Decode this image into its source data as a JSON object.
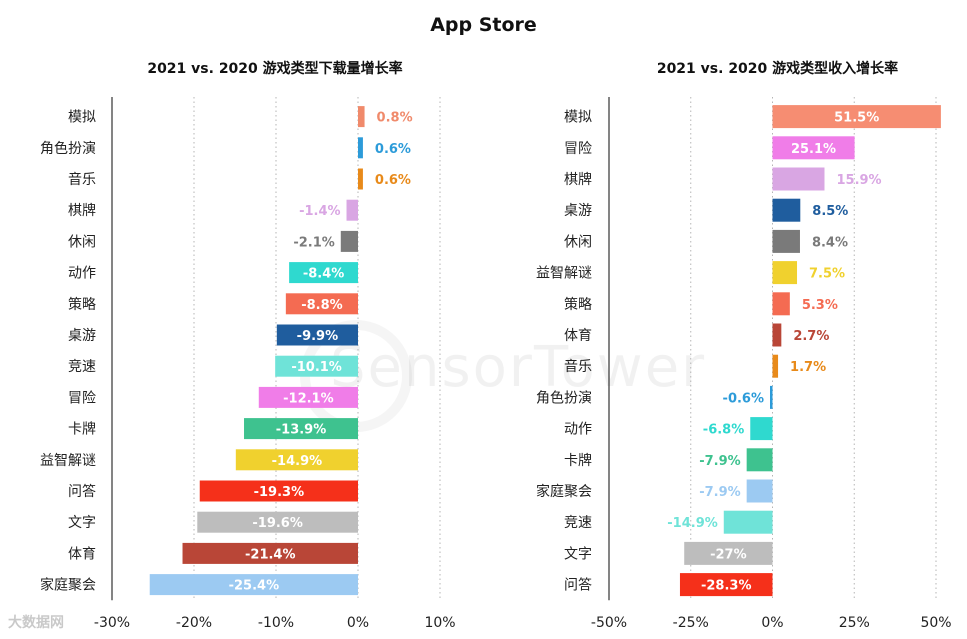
{
  "title": "App Store",
  "footer": "大数据网",
  "watermark": "SensorTower",
  "chart_data": [
    {
      "type": "bar",
      "orientation": "horizontal",
      "title": "2021 vs. 2020 游戏类型下载量增长率",
      "xlim": [
        -30,
        10
      ],
      "xticks": [
        -30,
        -20,
        -10,
        0,
        10
      ],
      "tick_labels": [
        "-30%",
        "-20%",
        "-10%",
        "0%",
        "10%"
      ],
      "grid": true,
      "categories": [
        "模拟",
        "角色扮演",
        "音乐",
        "棋牌",
        "休闲",
        "动作",
        "策略",
        "桌游",
        "竞速",
        "冒险",
        "卡牌",
        "益智解谜",
        "问答",
        "文字",
        "体育",
        "家庭聚会"
      ],
      "values": [
        0.8,
        0.6,
        0.6,
        -1.4,
        -2.1,
        -8.4,
        -8.8,
        -9.9,
        -10.1,
        -12.1,
        -13.9,
        -14.9,
        -19.3,
        -19.6,
        -21.4,
        -25.4
      ],
      "labels": [
        "0.8%",
        "0.6%",
        "0.6%",
        "-1.4%",
        "-2.1%",
        "-8.4%",
        "-8.8%",
        "-9.9%",
        "-10.1%",
        "-12.1%",
        "-13.9%",
        "-14.9%",
        "-19.3%",
        "-19.6%",
        "-21.4%",
        "-25.4%"
      ],
      "colors": [
        "#f08a6b",
        "#2c9bd9",
        "#e88a1a",
        "#d9a6e3",
        "#7a7a7a",
        "#2fd9cf",
        "#f46b52",
        "#1f5d9e",
        "#6fe3d8",
        "#f07de8",
        "#3ec28f",
        "#f0d12e",
        "#f5301a",
        "#bdbdbd",
        "#b94637",
        "#9ccaf2"
      ]
    },
    {
      "type": "bar",
      "orientation": "horizontal",
      "title": "2021 vs. 2020 游戏类型收入增长率",
      "xlim": [
        -50,
        50
      ],
      "xticks": [
        -50,
        -25,
        0,
        25,
        50
      ],
      "tick_labels": [
        "-50%",
        "-25%",
        "0%",
        "25%",
        "50%"
      ],
      "grid": true,
      "categories": [
        "模拟",
        "冒险",
        "棋牌",
        "桌游",
        "休闲",
        "益智解谜",
        "策略",
        "体育",
        "音乐",
        "角色扮演",
        "动作",
        "卡牌",
        "家庭聚会",
        "竞速",
        "文字",
        "问答"
      ],
      "values": [
        51.5,
        25.1,
        15.9,
        8.5,
        8.4,
        7.5,
        5.3,
        2.7,
        1.7,
        -0.6,
        -6.8,
        -7.9,
        -7.9,
        -14.9,
        -27,
        -28.3
      ],
      "labels": [
        "51.5%",
        "25.1%",
        "15.9%",
        "8.5%",
        "8.4%",
        "7.5%",
        "5.3%",
        "2.7%",
        "1.7%",
        "-0.6%",
        "-6.8%",
        "-7.9%",
        "-7.9%",
        "-14.9%",
        "-27%",
        "-28.3%"
      ],
      "colors": [
        "#f68d72",
        "#f07de8",
        "#d9a6e3",
        "#1f5d9e",
        "#7a7a7a",
        "#f0d12e",
        "#f46b52",
        "#b94637",
        "#e88a1a",
        "#2c9bd9",
        "#2fd9cf",
        "#3ec28f",
        "#9ccaf2",
        "#6fe3d8",
        "#bdbdbd",
        "#f5301a"
      ]
    }
  ]
}
